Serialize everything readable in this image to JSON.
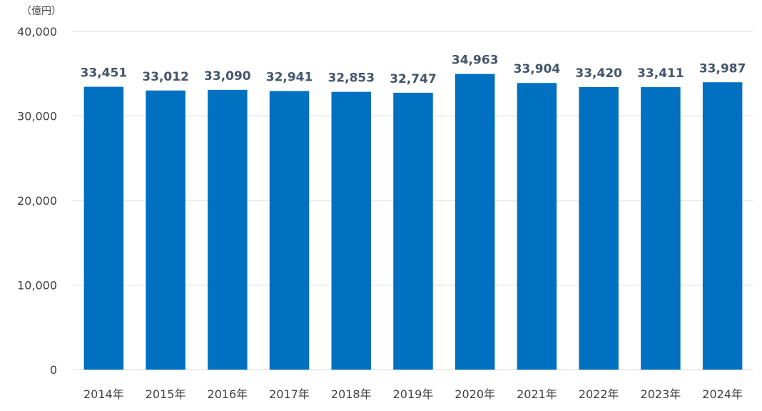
{
  "chart_data": {
    "type": "bar",
    "title": "",
    "xlabel": "",
    "ylabel": "",
    "unit_label": "（億円）",
    "categories": [
      "2014年",
      "2015年",
      "2016年",
      "2017年",
      "2018年",
      "2019年",
      "2020年",
      "2021年",
      "2022年",
      "2023年",
      "2024年"
    ],
    "values": [
      33451,
      33012,
      33090,
      32941,
      32853,
      32747,
      34963,
      33904,
      33420,
      33411,
      33987
    ],
    "data_labels": [
      "33,451",
      "33,012",
      "33,090",
      "32,941",
      "32,853",
      "32,747",
      "34,963",
      "33,904",
      "33,420",
      "33,411",
      "33,987"
    ],
    "ylim": [
      0,
      40000
    ],
    "yticks": [
      0,
      10000,
      20000,
      30000,
      40000
    ],
    "ytick_labels": [
      "0",
      "10,000",
      "20,000",
      "30,000",
      "40,000"
    ],
    "grid": true,
    "legend": "none",
    "colors": {
      "bar": "#0070c0",
      "grid": "#d9d9d9",
      "axis_text": "#404040",
      "data_label": "#44546a"
    }
  }
}
